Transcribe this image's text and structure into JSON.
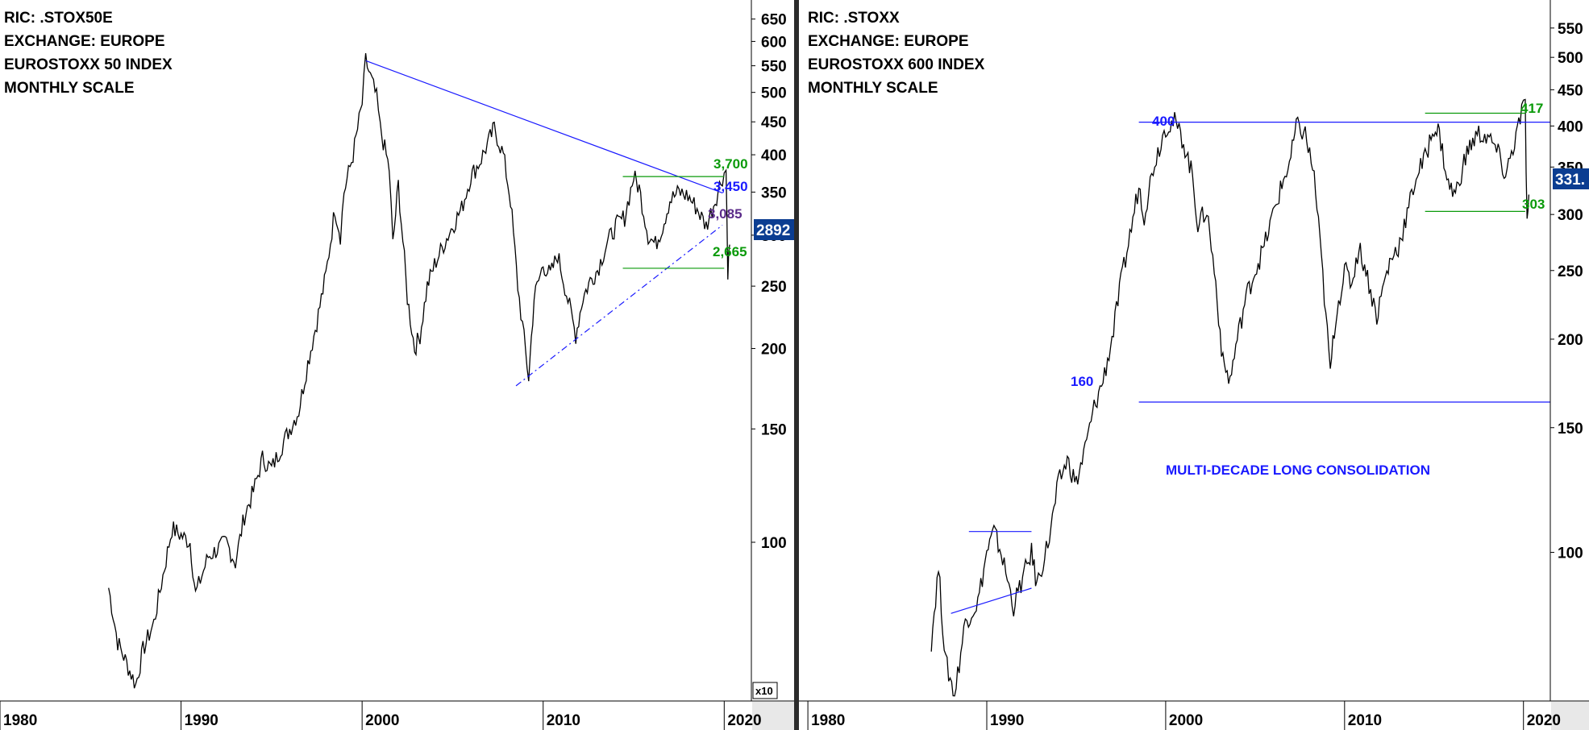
{
  "panels": [
    {
      "id": "left",
      "info_lines": [
        "RIC: .STOX50E",
        "EXCHANGE: EUROPE",
        "EUROSTOXX 50 INDEX",
        "MONTHLY SCALE"
      ],
      "last_value_label": "2892",
      "scale_indicator": "x10",
      "colors": {
        "price": "#000000",
        "trend": "#1a1aff",
        "support": "#0a9a0a",
        "mid": "#5b2c8a",
        "badge": "#0b3d91"
      }
    },
    {
      "id": "right",
      "info_lines": [
        "RIC: .STOXX",
        "EXCHANGE: EUROPE",
        "EUROSTOXX 600 INDEX",
        "MONTHLY SCALE"
      ],
      "last_value_label": "331.",
      "colors": {
        "price": "#000000",
        "trend": "#1a1aff",
        "support": "#0a9a0a",
        "badge": "#0b3d91"
      }
    }
  ],
  "chart_data": [
    {
      "type": "line",
      "scale": "log",
      "x_tick_labels": [
        "1980",
        "1990",
        "2000",
        "2010",
        "2020"
      ],
      "x_ticks": [
        1980,
        1990,
        2000,
        2010,
        2020
      ],
      "y_tick_labels": [
        "650",
        "600",
        "550",
        "500",
        "450",
        "400",
        "350",
        "300",
        "250",
        "200",
        "150",
        "100"
      ],
      "y_ticks": [
        650,
        600,
        550,
        500,
        450,
        400,
        350,
        300,
        250,
        200,
        150,
        100
      ],
      "xlim": [
        1980,
        2021.5
      ],
      "ylim": [
        57,
        680
      ],
      "series": [
        {
          "x": [
            1986.0,
            1986.5,
            1987.5,
            1987.9,
            1988.5,
            1989.5,
            1990.5,
            1990.8,
            1991.5,
            1992.5,
            1993.0,
            1993.5,
            1994.0,
            1994.5,
            1995.0,
            1995.5,
            1996.0,
            1996.5,
            1997.0,
            1997.5,
            1998.0,
            1998.5,
            1998.8,
            1999.0,
            1999.5,
            2000.0,
            2000.2,
            2000.8,
            2001.0,
            2001.5,
            2001.7,
            2002.0,
            2002.5,
            2002.9,
            2003.2,
            2003.6,
            2004.0,
            2004.5,
            2005.0,
            2005.5,
            2006.0,
            2006.5,
            2007.0,
            2007.3,
            2007.8,
            2008.2,
            2008.6,
            2009.2,
            2009.5,
            2010.0,
            2010.4,
            2010.8,
            2011.2,
            2011.8,
            2012.2,
            2012.6,
            2013.0,
            2013.5,
            2014.0,
            2014.5,
            2015.0,
            2015.3,
            2015.8,
            2016.2,
            2016.6,
            2017.0,
            2017.5,
            2018.0,
            2018.5,
            2019.0,
            2019.5,
            2019.9,
            2020.1,
            2020.2,
            2020.3
          ],
          "y": [
            85,
            70,
            60,
            68,
            75,
            105,
            100,
            83,
            95,
            100,
            93,
            110,
            120,
            135,
            130,
            140,
            150,
            160,
            190,
            220,
            260,
            330,
            300,
            350,
            400,
            480,
            560,
            490,
            440,
            380,
            290,
            360,
            240,
            200,
            210,
            250,
            270,
            290,
            310,
            330,
            370,
            390,
            420,
            440,
            400,
            340,
            250,
            180,
            240,
            270,
            260,
            280,
            250,
            210,
            240,
            255,
            265,
            290,
            310,
            320,
            370,
            355,
            300,
            290,
            310,
            340,
            350,
            345,
            330,
            310,
            340,
            370,
            380,
            265,
            290
          ]
        }
      ],
      "annotations": [
        {
          "label": "3,700",
          "value": 3700
        },
        {
          "label": "3,450",
          "value": 3450
        },
        {
          "label": "3,085",
          "value": 3085
        },
        {
          "label": "2,665",
          "value": 2665
        }
      ],
      "trendlines": [
        {
          "style": "solid",
          "from": [
            2000.2,
            560
          ],
          "to": [
            2019.9,
            349
          ]
        },
        {
          "style": "dashdot",
          "from": [
            2008.5,
            175
          ],
          "to": [
            2019.9,
            311
          ]
        }
      ],
      "levels": [
        {
          "value": 370,
          "x": [
            2014.4,
            2020.0
          ]
        },
        {
          "value": 266.5,
          "x": [
            2014.4,
            2020.0
          ]
        }
      ],
      "grid": false
    },
    {
      "type": "line",
      "scale": "log",
      "x_tick_labels": [
        "1980",
        "1990",
        "2000",
        "2010",
        "2020"
      ],
      "x_ticks": [
        1980,
        1990,
        2000,
        2010,
        2020
      ],
      "y_tick_labels": [
        "550",
        "500",
        "450",
        "400",
        "350",
        "300",
        "250",
        "200",
        "150",
        "100"
      ],
      "y_ticks": [
        550,
        500,
        450,
        400,
        350,
        300,
        250,
        200,
        150,
        100
      ],
      "xlim": [
        1979.5,
        2021.5
      ],
      "ylim": [
        62,
        590
      ],
      "series": [
        {
          "x": [
            1986.9,
            1987.3,
            1987.7,
            1988.2,
            1988.8,
            1989.5,
            1990.0,
            1990.4,
            1990.8,
            1991.5,
            1992.5,
            1992.8,
            1993.5,
            1994.0,
            1994.5,
            1995.0,
            1995.5,
            1996.0,
            1996.5,
            1997.0,
            1997.5,
            1998.0,
            1998.5,
            1998.8,
            1999.3,
            2000.0,
            2000.5,
            2001.0,
            2001.5,
            2001.8,
            2002.3,
            2002.8,
            2003.2,
            2003.6,
            2004.0,
            2004.5,
            2005.0,
            2005.5,
            2006.0,
            2006.5,
            2007.0,
            2007.3,
            2007.8,
            2008.3,
            2008.7,
            2009.2,
            2009.5,
            2010.0,
            2010.4,
            2010.8,
            2011.2,
            2011.8,
            2012.2,
            2012.6,
            2013.0,
            2013.5,
            2014.0,
            2014.5,
            2015.0,
            2015.3,
            2015.8,
            2016.2,
            2016.6,
            2017.0,
            2017.5,
            2018.0,
            2018.5,
            2019.0,
            2019.5,
            2019.9,
            2020.1,
            2020.2,
            2020.3
          ],
          "y": [
            75,
            95,
            70,
            63,
            80,
            85,
            100,
            107,
            100,
            84,
            100,
            90,
            105,
            125,
            135,
            125,
            140,
            160,
            175,
            200,
            240,
            280,
            330,
            300,
            350,
            400,
            405,
            380,
            340,
            290,
            305,
            240,
            185,
            175,
            200,
            230,
            250,
            270,
            300,
            330,
            360,
            400,
            390,
            340,
            260,
            180,
            215,
            250,
            240,
            270,
            250,
            215,
            240,
            260,
            270,
            300,
            340,
            360,
            400,
            390,
            330,
            320,
            350,
            375,
            390,
            385,
            370,
            340,
            380,
            417,
            430,
            290,
            320
          ]
        }
      ],
      "annotations": [
        {
          "label": "400",
          "value": 400
        },
        {
          "label": "160",
          "value": 160
        },
        {
          "label": "417",
          "value": 417
        },
        {
          "label": "303",
          "value": 303
        },
        {
          "label": "MULTI-DECADE LONG CONSOLIDATION"
        }
      ],
      "trendlines": [
        {
          "style": "solid",
          "from": [
            1988.0,
            82
          ],
          "to": [
            1992.5,
            89
          ]
        }
      ],
      "levels": [
        {
          "value": 405,
          "x": [
            1998.5,
            2021.5
          ]
        },
        {
          "value": 163,
          "x": [
            1998.5,
            2021.5
          ]
        },
        {
          "value": 417,
          "x": [
            2014.5,
            2020.1
          ]
        },
        {
          "value": 303,
          "x": [
            2014.5,
            2020.1
          ]
        },
        {
          "value": 107,
          "x": [
            1989.0,
            1992.5
          ]
        }
      ],
      "grid": false
    }
  ]
}
